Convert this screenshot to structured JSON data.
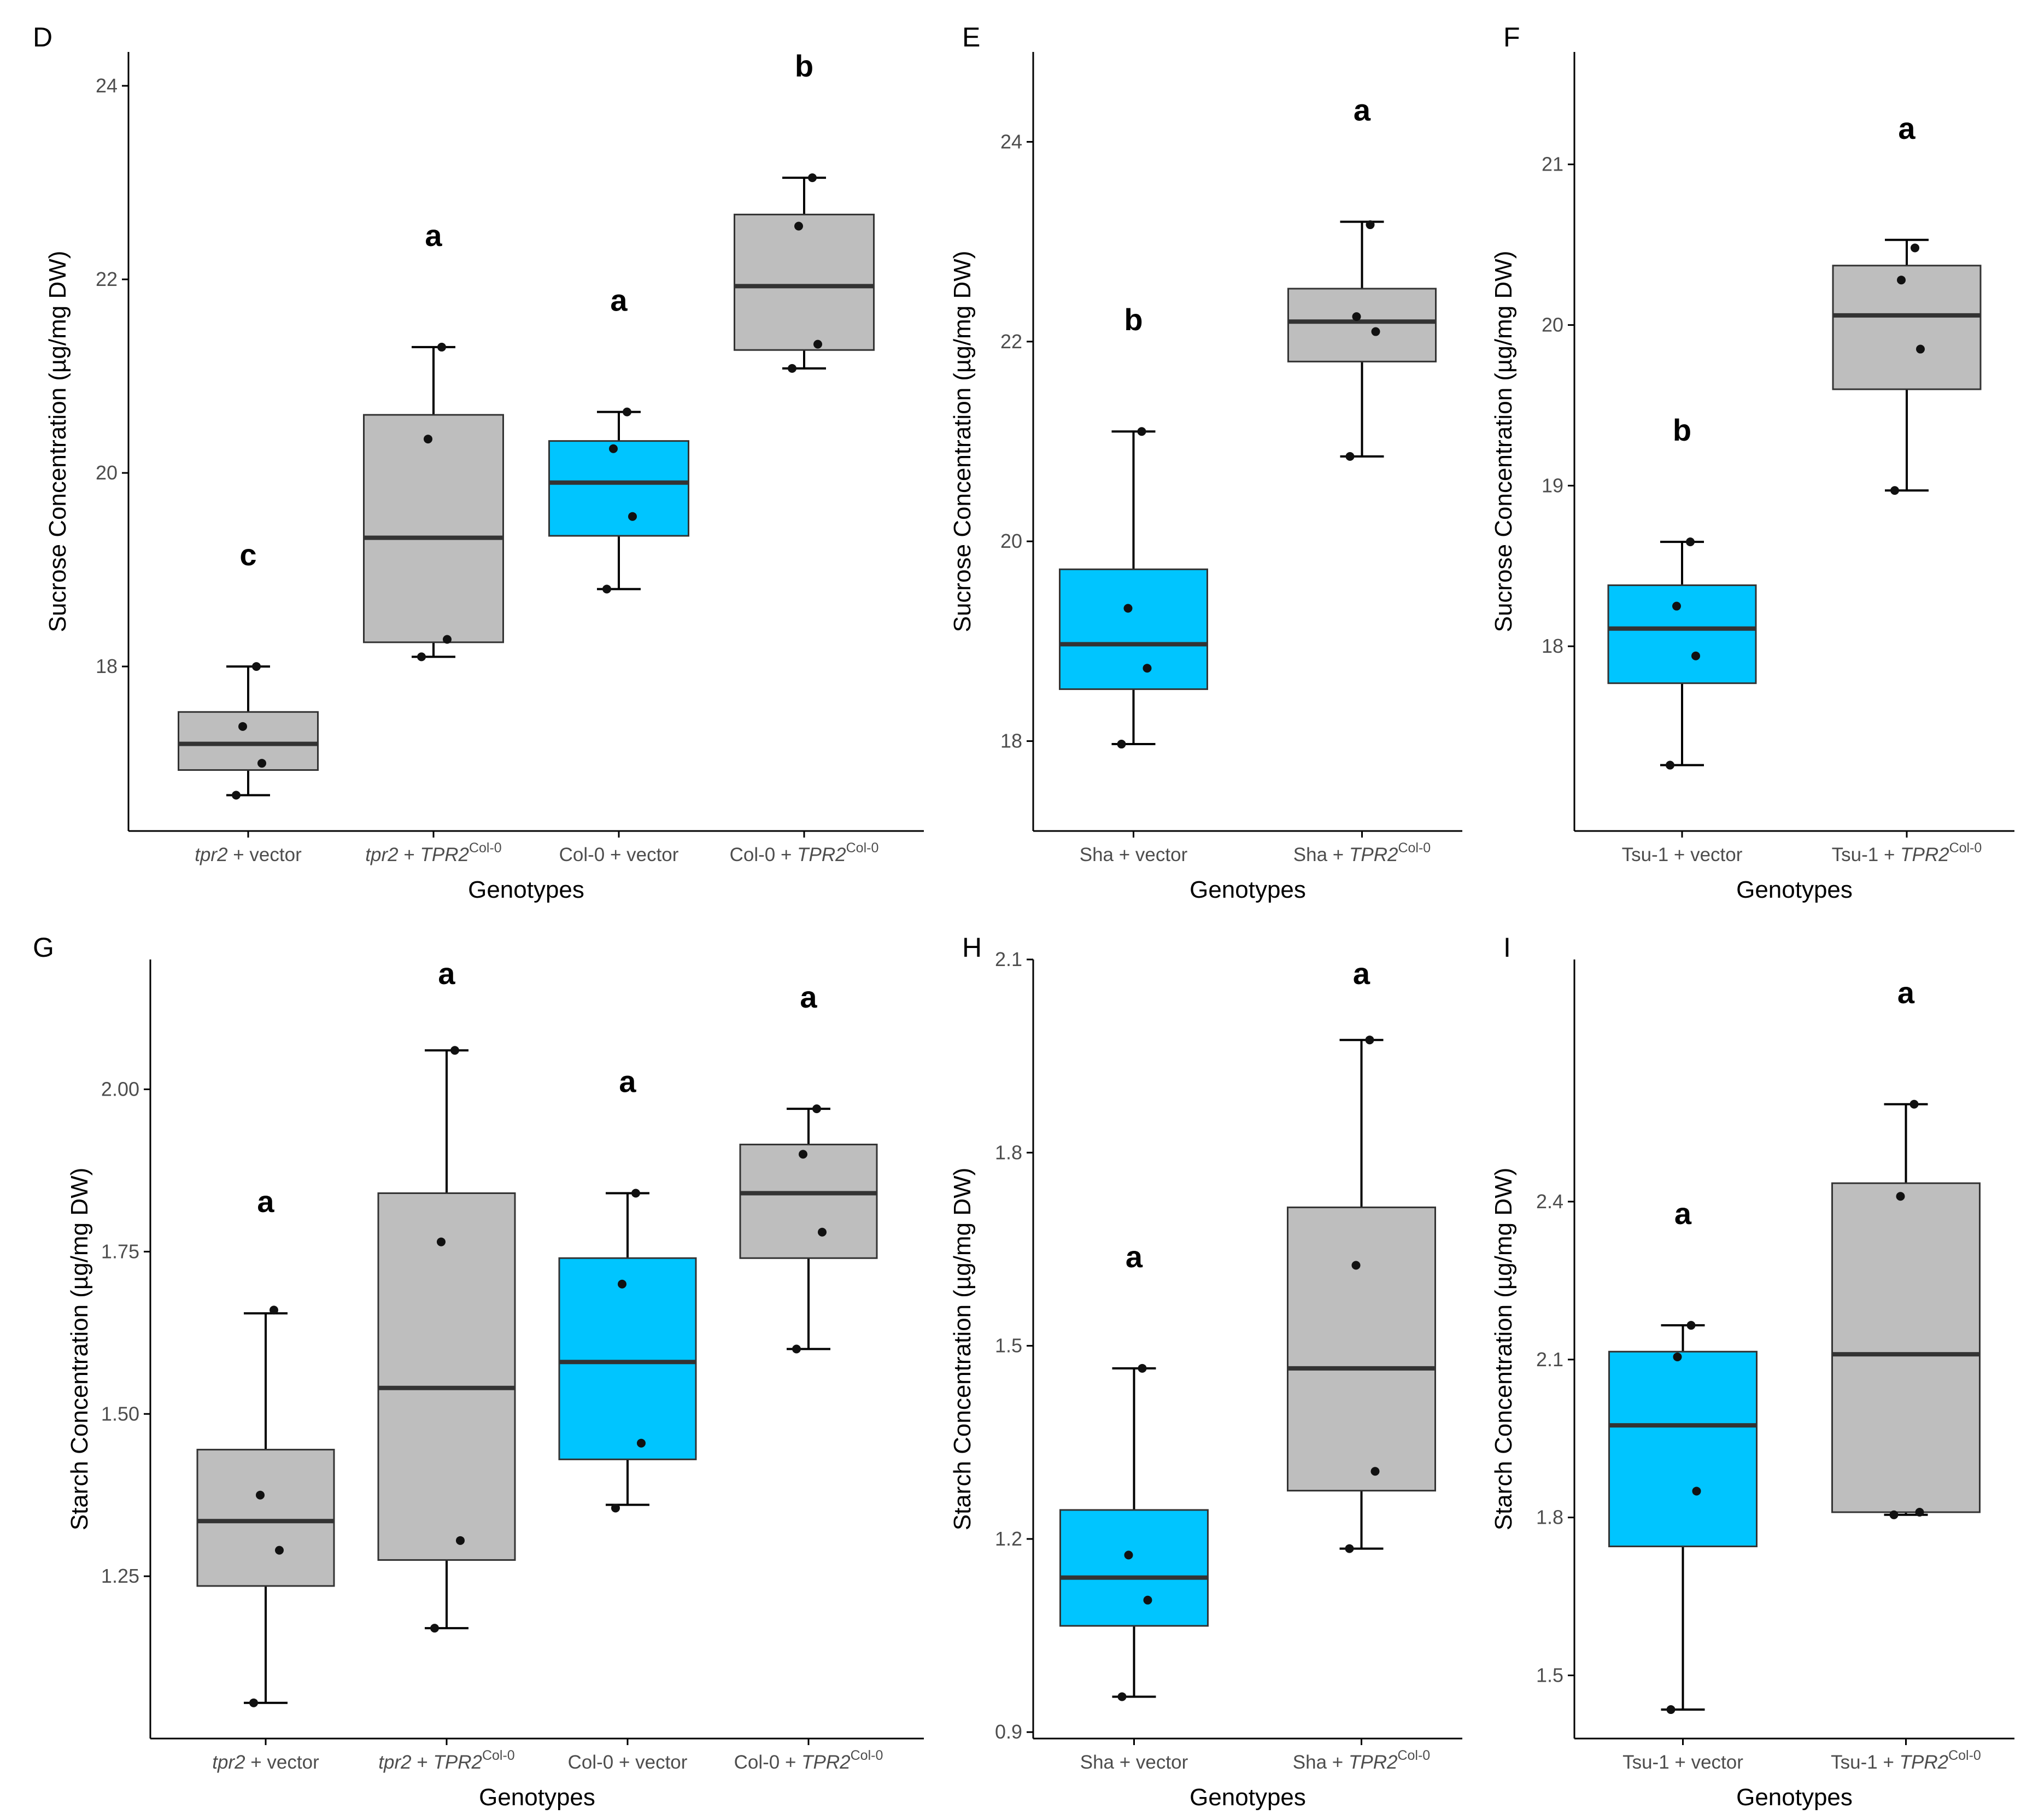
{
  "figure": {
    "panels_count": 6
  },
  "colors": {
    "box_gray": "#bebebe",
    "box_blue": "#00c5ff",
    "outline": "#333333",
    "point": "#111111",
    "axis": "#000000",
    "tick_text": "#4d4d4d"
  },
  "chart_data": [
    {
      "id": "D",
      "type": "boxplot",
      "panel_label": "D",
      "ylabel": "Sucrose Concentration (µg/mg DW)",
      "xlabel": "Genotypes",
      "ylim": [
        16.3,
        24.35
      ],
      "yticks": [
        18,
        20,
        22,
        24
      ],
      "ytick_labels": [
        "18",
        "20",
        "22",
        "24"
      ],
      "groups": [
        {
          "label_parts": [
            {
              "text": "tpr2",
              "italic": true
            },
            {
              "text": " + vector"
            }
          ],
          "color": "gray",
          "q1": 16.93,
          "median": 17.2,
          "q3": 17.53,
          "whisker_low": 16.67,
          "whisker_high": 18.0,
          "points": [
            16.67,
            17.0,
            17.38,
            18.0
          ],
          "sig": "c"
        },
        {
          "label_parts": [
            {
              "text": "tpr2",
              "italic": true
            },
            {
              "text": " + "
            },
            {
              "text": "TPR2",
              "italic": true
            },
            {
              "text": "Col-0",
              "sup": true
            }
          ],
          "color": "gray",
          "q1": 18.25,
          "median": 19.33,
          "q3": 20.6,
          "whisker_low": 18.1,
          "whisker_high": 21.3,
          "points": [
            18.1,
            18.28,
            20.35,
            21.3
          ],
          "sig": "a"
        },
        {
          "label_parts": [
            {
              "text": "Col-0 + vector"
            }
          ],
          "color": "blue",
          "q1": 19.35,
          "median": 19.9,
          "q3": 20.33,
          "whisker_low": 18.8,
          "whisker_high": 20.63,
          "points": [
            18.8,
            19.55,
            20.25,
            20.63
          ],
          "sig": "a"
        },
        {
          "label_parts": [
            {
              "text": "Col-0 + "
            },
            {
              "text": "TPR2",
              "italic": true
            },
            {
              "text": "Col-0",
              "sup": true
            }
          ],
          "color": "gray",
          "q1": 21.27,
          "median": 21.93,
          "q3": 22.67,
          "whisker_low": 21.08,
          "whisker_high": 23.05,
          "points": [
            21.08,
            21.33,
            22.55,
            23.05
          ],
          "sig": "b"
        }
      ]
    },
    {
      "id": "E",
      "type": "boxplot",
      "panel_label": "E",
      "ylabel": "Sucrose Concentration (µg/mg DW)",
      "xlabel": "Genotypes",
      "ylim": [
        17.1,
        24.9
      ],
      "yticks": [
        18,
        20,
        22,
        24
      ],
      "ytick_labels": [
        "18",
        "20",
        "22",
        "24"
      ],
      "groups": [
        {
          "label_parts": [
            {
              "text": "Sha + vector"
            }
          ],
          "color": "blue",
          "q1": 18.52,
          "median": 18.97,
          "q3": 19.72,
          "whisker_low": 17.97,
          "whisker_high": 21.1,
          "points": [
            17.97,
            18.73,
            19.33,
            21.1
          ],
          "sig": "b"
        },
        {
          "label_parts": [
            {
              "text": "Sha + "
            },
            {
              "text": "TPR2",
              "italic": true
            },
            {
              "text": "Col-0",
              "sup": true
            }
          ],
          "color": "gray",
          "q1": 21.8,
          "median": 22.2,
          "q3": 22.53,
          "whisker_low": 20.85,
          "whisker_high": 23.2,
          "points": [
            20.85,
            22.1,
            22.25,
            23.17
          ],
          "sig": "a"
        }
      ]
    },
    {
      "id": "F",
      "type": "boxplot",
      "panel_label": "F",
      "ylabel": "Sucrose Concentration (µg/mg DW)",
      "xlabel": "Genotypes",
      "ylim": [
        16.85,
        21.7
      ],
      "yticks": [
        18,
        19,
        20,
        21
      ],
      "ytick_labels": [
        "18",
        "19",
        "20",
        "21"
      ],
      "groups": [
        {
          "label_parts": [
            {
              "text": "Tsu-1 + vector"
            }
          ],
          "color": "blue",
          "q1": 17.77,
          "median": 18.11,
          "q3": 18.38,
          "whisker_low": 17.26,
          "whisker_high": 18.65,
          "points": [
            17.26,
            17.94,
            18.25,
            18.65
          ],
          "sig": "b"
        },
        {
          "label_parts": [
            {
              "text": "Tsu-1 + "
            },
            {
              "text": "TPR2",
              "italic": true
            },
            {
              "text": "Col-0",
              "sup": true
            }
          ],
          "color": "gray",
          "q1": 19.6,
          "median": 20.06,
          "q3": 20.37,
          "whisker_low": 18.97,
          "whisker_high": 20.53,
          "points": [
            18.97,
            19.85,
            20.28,
            20.48
          ],
          "sig": "a"
        }
      ]
    },
    {
      "id": "G",
      "type": "boxplot",
      "panel_label": "G",
      "ylabel": "Starch Concentration (µg/mg DW)",
      "xlabel": "Genotypes",
      "ylim": [
        1.0,
        2.2
      ],
      "yticks": [
        1.25,
        1.5,
        1.75,
        2.0
      ],
      "ytick_labels": [
        "1.25",
        "1.50",
        "1.75",
        "2.00"
      ],
      "groups": [
        {
          "label_parts": [
            {
              "text": "tpr2",
              "italic": true
            },
            {
              "text": " + vector"
            }
          ],
          "color": "gray",
          "q1": 1.235,
          "median": 1.335,
          "q3": 1.445,
          "whisker_low": 1.055,
          "whisker_high": 1.655,
          "points": [
            1.055,
            1.29,
            1.375,
            1.66
          ],
          "sig": "a"
        },
        {
          "label_parts": [
            {
              "text": "tpr2",
              "italic": true
            },
            {
              "text": " + "
            },
            {
              "text": "TPR2",
              "italic": true
            },
            {
              "text": "Col-0",
              "sup": true
            }
          ],
          "color": "gray",
          "q1": 1.275,
          "median": 1.54,
          "q3": 1.84,
          "whisker_low": 1.17,
          "whisker_high": 2.06,
          "points": [
            1.17,
            1.305,
            1.765,
            2.06
          ],
          "sig": "a"
        },
        {
          "label_parts": [
            {
              "text": "Col-0 + vector"
            }
          ],
          "color": "blue",
          "q1": 1.43,
          "median": 1.58,
          "q3": 1.74,
          "whisker_low": 1.36,
          "whisker_high": 1.84,
          "points": [
            1.355,
            1.455,
            1.7,
            1.84
          ],
          "sig": "a"
        },
        {
          "label_parts": [
            {
              "text": "Col-0 + "
            },
            {
              "text": "TPR2",
              "italic": true
            },
            {
              "text": "Col-0",
              "sup": true
            }
          ],
          "color": "gray",
          "q1": 1.74,
          "median": 1.84,
          "q3": 1.915,
          "whisker_low": 1.6,
          "whisker_high": 1.97,
          "points": [
            1.6,
            1.78,
            1.9,
            1.97
          ],
          "sig": "a"
        }
      ]
    },
    {
      "id": "H",
      "type": "boxplot",
      "panel_label": "H",
      "ylabel": "Starch Concentration (µg/mg DW)",
      "xlabel": "Genotypes",
      "ylim": [
        0.89,
        2.1
      ],
      "yticks": [
        0.9,
        1.2,
        1.5,
        1.8,
        2.1
      ],
      "ytick_labels": [
        "0.9",
        "1.2",
        "1.5",
        "1.8",
        "2.1"
      ],
      "groups": [
        {
          "label_parts": [
            {
              "text": "Sha + vector"
            }
          ],
          "color": "blue",
          "q1": 1.065,
          "median": 1.14,
          "q3": 1.245,
          "whisker_low": 0.955,
          "whisker_high": 1.465,
          "points": [
            0.955,
            1.105,
            1.175,
            1.465
          ],
          "sig": "a"
        },
        {
          "label_parts": [
            {
              "text": "Sha + "
            },
            {
              "text": "TPR2",
              "italic": true
            },
            {
              "text": "Col-0",
              "sup": true
            }
          ],
          "color": "gray",
          "q1": 1.275,
          "median": 1.465,
          "q3": 1.715,
          "whisker_low": 1.185,
          "whisker_high": 1.975,
          "points": [
            1.185,
            1.305,
            1.625,
            1.975
          ],
          "sig": "a"
        }
      ]
    },
    {
      "id": "I",
      "type": "boxplot",
      "panel_label": "I",
      "ylabel": "Starch Concentration (µg/mg DW)",
      "xlabel": "Genotypes",
      "ylim": [
        1.38,
        2.86
      ],
      "yticks": [
        1.5,
        1.8,
        2.1,
        2.4
      ],
      "ytick_labels": [
        "1.5",
        "1.8",
        "2.1",
        "2.4"
      ],
      "groups": [
        {
          "label_parts": [
            {
              "text": "Tsu-1 + vector"
            }
          ],
          "color": "blue",
          "q1": 1.745,
          "median": 1.975,
          "q3": 2.115,
          "whisker_low": 1.435,
          "whisker_high": 2.165,
          "points": [
            1.435,
            1.85,
            2.105,
            2.165
          ],
          "sig": "a"
        },
        {
          "label_parts": [
            {
              "text": "Tsu-1 + "
            },
            {
              "text": "TPR2",
              "italic": true
            },
            {
              "text": "Col-0",
              "sup": true
            }
          ],
          "color": "gray",
          "q1": 1.81,
          "median": 2.11,
          "q3": 2.435,
          "whisker_low": 1.805,
          "whisker_high": 2.585,
          "points": [
            1.805,
            1.81,
            2.41,
            2.585
          ],
          "sig": "a"
        }
      ]
    }
  ]
}
